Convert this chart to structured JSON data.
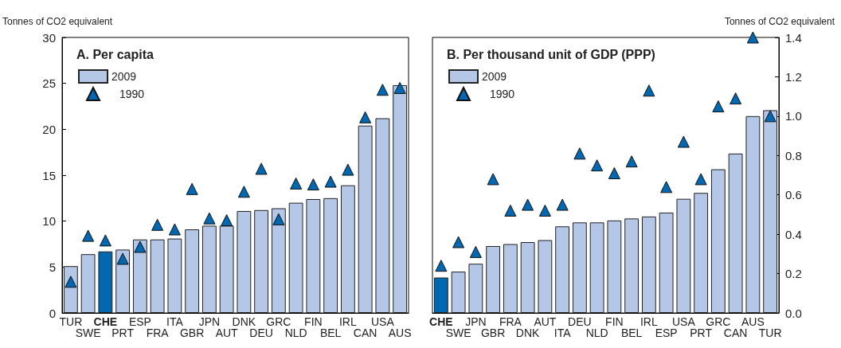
{
  "chart_data": [
    {
      "type": "bar",
      "title": "A. Per capita",
      "ylabel": "Tonnes of CO2 equivalent",
      "categories": [
        "TUR",
        "SWE",
        "CHE",
        "PRT",
        "ESP",
        "FRA",
        "ITA",
        "GBR",
        "JPN",
        "AUT",
        "DNK",
        "DEU",
        "GRC",
        "NLD",
        "FIN",
        "BEL",
        "IRL",
        "CAN",
        "USA",
        "AUS"
      ],
      "series": [
        {
          "name": "2009",
          "color": "#b4c7e7",
          "colors": [
            "#b4c7e7",
            "#b4c7e7",
            "#0067b1",
            "#b4c7e7",
            "#b4c7e7",
            "#b4c7e7",
            "#b4c7e7",
            "#b4c7e7",
            "#b4c7e7",
            "#b4c7e7",
            "#b4c7e7",
            "#b4c7e7",
            "#b4c7e7",
            "#b4c7e7",
            "#b4c7e7",
            "#b4c7e7",
            "#b4c7e7",
            "#b4c7e7",
            "#b4c7e7",
            "#b4c7e7"
          ],
          "values": [
            5.1,
            6.4,
            6.7,
            6.9,
            8.0,
            8.0,
            8.1,
            9.1,
            9.5,
            9.5,
            11.1,
            11.2,
            11.4,
            12.0,
            12.4,
            12.5,
            13.9,
            20.4,
            21.2,
            24.8
          ]
        },
        {
          "name": "1990",
          "type": "scatter",
          "color": "#0067b1",
          "values": [
            3.4,
            8.4,
            7.9,
            5.9,
            7.2,
            9.6,
            9.1,
            13.5,
            10.3,
            10.1,
            13.2,
            15.7,
            10.2,
            14.1,
            14.0,
            14.3,
            15.6,
            21.3,
            24.3,
            24.5
          ]
        }
      ],
      "marker": "triangle",
      "ylim": [
        0,
        30
      ],
      "yticks": [
        0,
        5,
        10,
        15,
        20,
        25,
        30
      ],
      "legend": "top left",
      "grid": false
    },
    {
      "type": "bar",
      "title": "B. Per thousand unit of GDP (PPP)",
      "y2label": "Tonnes of CO2 equivalent",
      "categories": [
        "CHE",
        "SWE",
        "JPN",
        "GBR",
        "FRA",
        "DNK",
        "AUT",
        "ITA",
        "DEU",
        "NLD",
        "FIN",
        "BEL",
        "IRL",
        "ESP",
        "USA",
        "PRT",
        "GRC",
        "CAN",
        "AUS",
        "TUR"
      ],
      "series": [
        {
          "name": "2009",
          "axis": "y2",
          "color": "#b4c7e7",
          "colors": [
            "#0067b1",
            "#b4c7e7",
            "#b4c7e7",
            "#b4c7e7",
            "#b4c7e7",
            "#b4c7e7",
            "#b4c7e7",
            "#b4c7e7",
            "#b4c7e7",
            "#b4c7e7",
            "#b4c7e7",
            "#b4c7e7",
            "#b4c7e7",
            "#b4c7e7",
            "#b4c7e7",
            "#b4c7e7",
            "#b4c7e7",
            "#b4c7e7",
            "#b4c7e7",
            "#b4c7e7"
          ],
          "values": [
            0.18,
            0.21,
            0.25,
            0.34,
            0.35,
            0.36,
            0.37,
            0.44,
            0.46,
            0.46,
            0.47,
            0.48,
            0.49,
            0.51,
            0.58,
            0.61,
            0.73,
            0.81,
            1.0,
            1.03
          ]
        },
        {
          "name": "1990",
          "type": "scatter",
          "axis": "y2",
          "color": "#0067b1",
          "values": [
            0.24,
            0.36,
            0.31,
            0.68,
            0.52,
            0.55,
            0.52,
            0.55,
            0.81,
            0.75,
            0.71,
            0.77,
            1.13,
            0.64,
            0.87,
            0.68,
            1.05,
            1.09,
            1.4,
            1.0
          ]
        }
      ],
      "marker": "triangle",
      "y2lim": [
        0,
        1.4
      ],
      "y2ticks": [
        {
          "value": 0,
          "label": "0.0"
        },
        {
          "value": 0.2,
          "label": "0.2"
        },
        {
          "value": 0.4,
          "label": "0.4"
        },
        {
          "value": 0.6,
          "label": "0.6"
        },
        {
          "value": 0.8,
          "label": "0.8"
        },
        {
          "value": 1.0,
          "label": "1.0"
        },
        {
          "value": 1.2,
          "label": "1.2"
        },
        {
          "value": 1.4,
          "label": "1.4"
        }
      ],
      "legend": "top left",
      "grid": false
    }
  ]
}
